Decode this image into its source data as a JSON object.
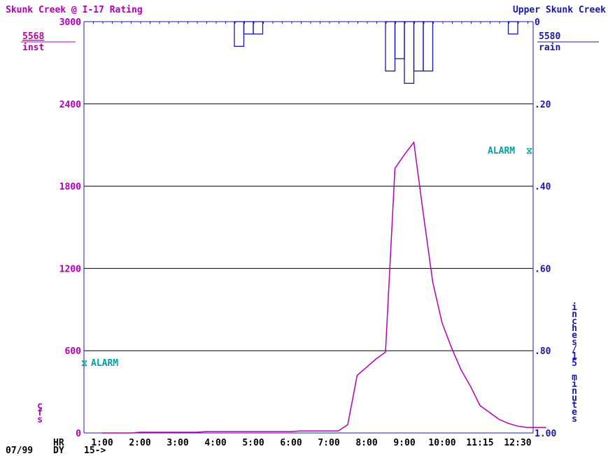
{
  "titles": {
    "left": "Skunk Creek @ I-17 Rating",
    "right": "Upper Skunk Creek"
  },
  "left_sensor": {
    "id": "5568",
    "type": "inst"
  },
  "right_sensor": {
    "id": "5580",
    "type": "rain"
  },
  "left_axis_unit": "cfs",
  "right_axis_unit": "inches/15 minutes",
  "footer": {
    "date": "07/99",
    "hr_label": "HR",
    "dy_label": "DY",
    "interval": "15->"
  },
  "alarms": {
    "flow_label": "ALARM",
    "rain_label": "ALARM"
  },
  "colors": {
    "flow": "#b400b4",
    "rain": "#1818a8",
    "alarm": "#00a0a0",
    "grid": "#000000"
  },
  "chart_data": {
    "type": "line",
    "left_axis": {
      "ticks": [
        "3000",
        "2400",
        "1800",
        "1200",
        "600",
        "0"
      ],
      "ylim": [
        0,
        3000
      ]
    },
    "right_axis": {
      "ticks": [
        "0",
        ".20",
        ".40",
        ".60",
        ".80",
        "1.00"
      ],
      "ylim": [
        0,
        1.0
      ],
      "inverted": true
    },
    "x_axis": {
      "tick_labels": [
        "1:00",
        "2:00",
        "3:00",
        "4:00",
        "5:00",
        "6:00",
        "7:00",
        "8:00",
        "9:00",
        "10:00",
        "11:15",
        "12:30"
      ]
    },
    "flow_alarm_cfs": 520,
    "rain_alarm_in": 0.3,
    "flow_series": {
      "x": [
        0.0,
        0.25,
        0.5,
        0.75,
        1.0,
        1.25,
        1.5,
        1.75,
        2.0,
        2.25,
        2.5,
        2.75,
        3.0,
        3.25,
        3.5,
        3.75,
        4.0,
        4.25,
        4.5,
        4.75,
        5.0,
        5.25,
        5.5,
        5.75,
        6.0,
        6.25,
        6.5,
        6.75,
        7.0,
        7.25,
        7.5,
        7.75,
        8.0,
        8.25,
        8.5,
        8.75,
        9.0,
        9.25,
        9.5,
        9.75,
        10.0,
        10.25,
        10.5,
        10.75,
        11.0,
        11.25,
        11.5,
        11.75
      ],
      "y": [
        0,
        0,
        0,
        0,
        5,
        5,
        5,
        5,
        5,
        5,
        5,
        10,
        10,
        10,
        10,
        10,
        10,
        10,
        10,
        10,
        10,
        15,
        15,
        15,
        15,
        15,
        60,
        420,
        480,
        540,
        590,
        1930,
        2030,
        2120,
        1600,
        1100,
        800,
        620,
        460,
        340,
        200,
        150,
        100,
        70,
        50,
        40,
        40,
        40
      ]
    },
    "rain_series": {
      "x": [
        3.5,
        3.75,
        4.0,
        4.25,
        7.5,
        7.75,
        8.0,
        8.25,
        8.5,
        10.75
      ],
      "y": [
        0.06,
        0.03,
        0.03,
        0.0,
        0.12,
        0.09,
        0.15,
        0.12,
        0.12,
        0.03
      ]
    }
  }
}
